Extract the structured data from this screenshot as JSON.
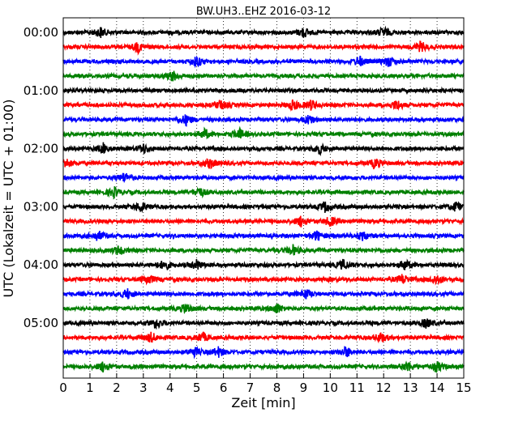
{
  "chart_data": {
    "type": "line",
    "title": "BW.UH3..EHZ 2016-03-12",
    "xlabel": "Zeit  [min]",
    "ylabel": "UTC (Lokalzeit = UTC + 01:00)",
    "xlim": [
      0,
      15
    ],
    "x_ticks": [
      "0",
      "1",
      "2",
      "3",
      "4",
      "5",
      "6",
      "7",
      "8",
      "9",
      "10",
      "11",
      "12",
      "13",
      "14",
      "15"
    ],
    "y_tick_labels": [
      "00:00",
      "01:00",
      "02:00",
      "03:00",
      "04:00",
      "05:00"
    ],
    "trace_interval_min": 15,
    "grid": {
      "vertical": true,
      "style": "dotted"
    },
    "series_colors": [
      "#000000",
      "#ff0000",
      "#0000ff",
      "#008000"
    ],
    "traces": [
      {
        "start": "00:00",
        "events": [
          1.4,
          9.0,
          12.0
        ]
      },
      {
        "start": "00:15",
        "events": [
          2.8,
          13.4
        ]
      },
      {
        "start": "00:30",
        "events": [
          5.0,
          11.1,
          12.2
        ]
      },
      {
        "start": "00:45",
        "events": [
          4.1
        ]
      },
      {
        "start": "01:00",
        "events": []
      },
      {
        "start": "01:15",
        "events": [
          5.9,
          8.6,
          9.3,
          12.5
        ]
      },
      {
        "start": "01:30",
        "events": [
          4.6,
          9.2
        ]
      },
      {
        "start": "01:45",
        "events": [
          5.3,
          6.6
        ]
      },
      {
        "start": "02:00",
        "events": [
          1.5,
          3.0,
          9.6
        ]
      },
      {
        "start": "02:15",
        "events": [
          0.1,
          5.5,
          11.7
        ]
      },
      {
        "start": "02:30",
        "events": [
          2.3
        ]
      },
      {
        "start": "02:45",
        "events": [
          1.9,
          5.1
        ]
      },
      {
        "start": "03:00",
        "events": [
          2.9,
          9.8,
          14.7
        ]
      },
      {
        "start": "03:15",
        "events": [
          8.9,
          10.0
        ]
      },
      {
        "start": "03:30",
        "events": [
          1.3,
          9.5,
          11.2
        ]
      },
      {
        "start": "03:45",
        "events": [
          2.1,
          8.6
        ]
      },
      {
        "start": "04:00",
        "events": [
          3.8,
          5.0,
          10.5,
          12.8
        ]
      },
      {
        "start": "04:15",
        "events": [
          3.2,
          12.7,
          14.0
        ]
      },
      {
        "start": "04:30",
        "events": [
          2.4,
          9.1
        ]
      },
      {
        "start": "04:45",
        "events": [
          4.6,
          8.0
        ]
      },
      {
        "start": "05:00",
        "events": [
          3.5,
          13.6
        ]
      },
      {
        "start": "05:15",
        "events": [
          3.3,
          5.2,
          11.9
        ]
      },
      {
        "start": "05:30",
        "events": [
          4.9,
          5.8,
          10.6
        ]
      },
      {
        "start": "05:45",
        "events": [
          1.5,
          12.9,
          14.0
        ]
      }
    ]
  }
}
